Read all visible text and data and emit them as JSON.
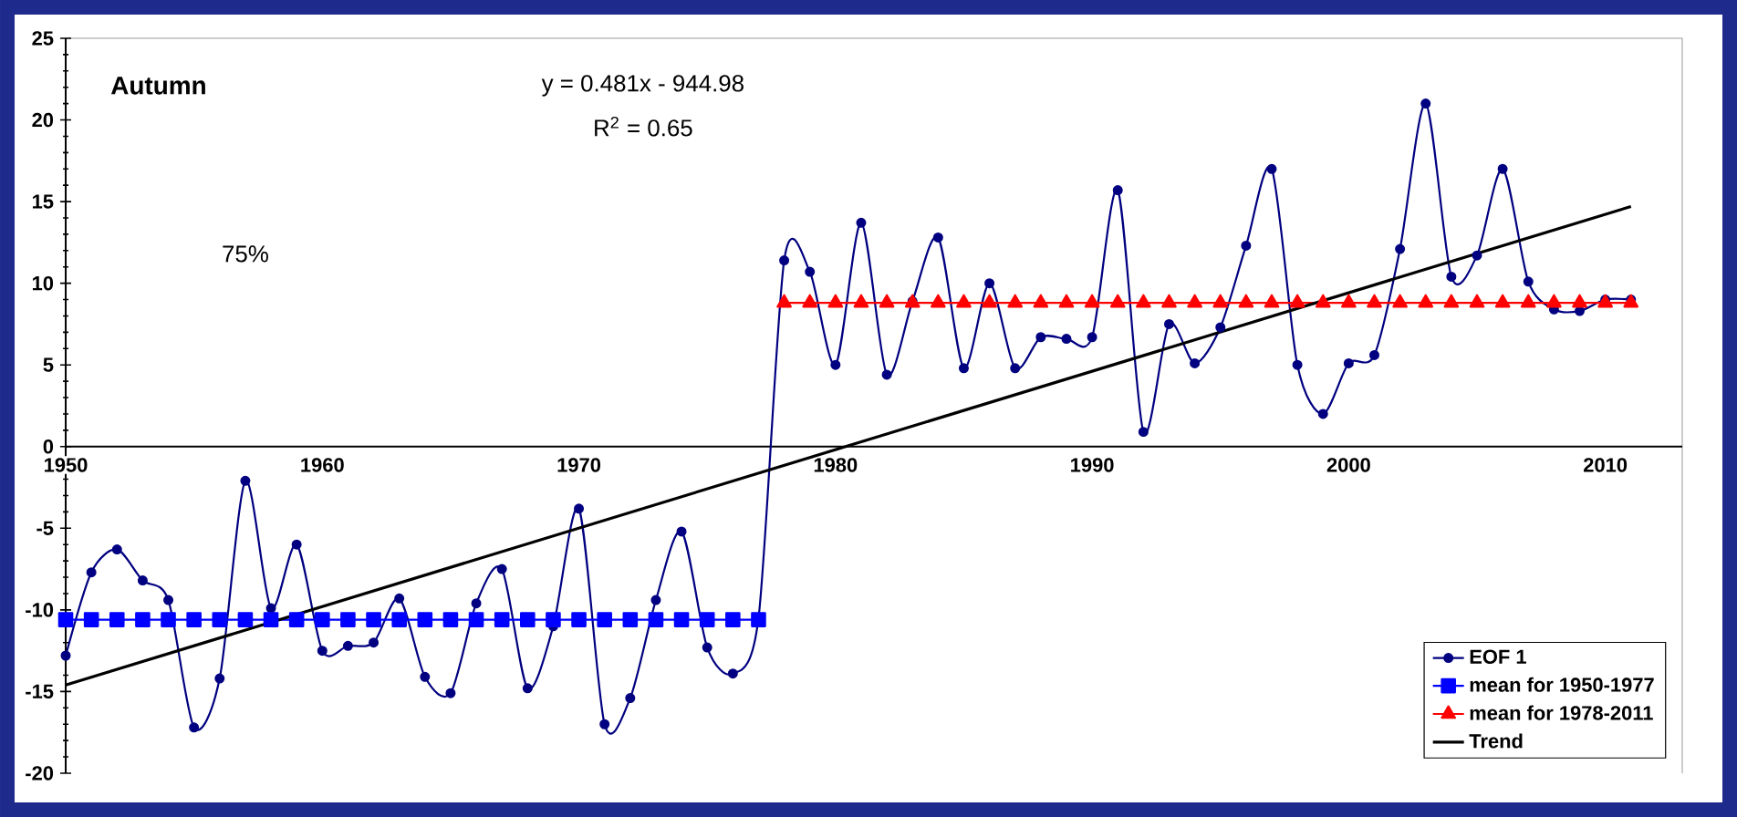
{
  "chart_data": {
    "type": "line",
    "title": "Autumn",
    "annotations": [
      "y = 0.481x - 944.98",
      "R$^{2}$ = 0.65",
      "75%"
    ],
    "xlim": [
      1950,
      2013
    ],
    "xticks": [
      1950,
      1960,
      1970,
      1980,
      1990,
      2000,
      2010
    ],
    "ylim": [
      -20,
      25
    ],
    "yticks": [
      -20,
      -15,
      -10,
      -5,
      0,
      5,
      10,
      15,
      20,
      25
    ],
    "grid": false,
    "legend": "bottom right",
    "series": [
      {
        "name": "EOF 1",
        "color": "#000080",
        "marker": "circle",
        "x": [
          1950,
          1951,
          1952,
          1953,
          1954,
          1955,
          1956,
          1957,
          1958,
          1959,
          1960,
          1961,
          1962,
          1963,
          1964,
          1965,
          1966,
          1967,
          1968,
          1969,
          1970,
          1971,
          1972,
          1973,
          1974,
          1975,
          1976,
          1977,
          1978,
          1979,
          1980,
          1981,
          1982,
          1983,
          1984,
          1985,
          1986,
          1987,
          1988,
          1989,
          1990,
          1991,
          1992,
          1993,
          1994,
          1995,
          1996,
          1997,
          1998,
          1999,
          2000,
          2001,
          2002,
          2003,
          2004,
          2005,
          2006,
          2007,
          2008,
          2009,
          2010,
          2011
        ],
        "values": [
          -12.8,
          -7.7,
          -6.3,
          -8.2,
          -9.4,
          -17.2,
          -14.2,
          -2.1,
          -9.9,
          -6.0,
          -12.5,
          -12.2,
          -12.0,
          -9.3,
          -14.1,
          -15.1,
          -9.6,
          -7.5,
          -14.8,
          -11.0,
          -3.8,
          -17.0,
          -15.4,
          -9.4,
          -5.2,
          -12.3,
          -13.9,
          -10.5,
          11.4,
          10.7,
          5.0,
          13.7,
          4.4,
          8.9,
          12.8,
          4.8,
          10.0,
          4.8,
          6.7,
          6.6,
          6.7,
          15.7,
          0.9,
          7.5,
          5.1,
          7.3,
          12.3,
          17.0,
          5.0,
          2.0,
          5.1,
          5.6,
          12.1,
          21.0,
          10.4,
          11.7,
          17.0,
          10.1,
          8.4,
          8.3,
          9.0,
          9.0
        ]
      },
      {
        "name": "mean for 1950-1977",
        "color": "#0000ff",
        "marker": "square",
        "x": [
          1950,
          1951,
          1952,
          1953,
          1954,
          1955,
          1956,
          1957,
          1958,
          1959,
          1960,
          1961,
          1962,
          1963,
          1964,
          1965,
          1966,
          1967,
          1968,
          1969,
          1970,
          1971,
          1972,
          1973,
          1974,
          1975,
          1976,
          1977
        ],
        "values": [
          -10.6,
          -10.6,
          -10.6,
          -10.6,
          -10.6,
          -10.6,
          -10.6,
          -10.6,
          -10.6,
          -10.6,
          -10.6,
          -10.6,
          -10.6,
          -10.6,
          -10.6,
          -10.6,
          -10.6,
          -10.6,
          -10.6,
          -10.6,
          -10.6,
          -10.6,
          -10.6,
          -10.6,
          -10.6,
          -10.6,
          -10.6,
          -10.6
        ]
      },
      {
        "name": "mean for 1978-2011",
        "color": "#ff0000",
        "marker": "triangle",
        "x": [
          1978,
          1979,
          1980,
          1981,
          1982,
          1983,
          1984,
          1985,
          1986,
          1987,
          1988,
          1989,
          1990,
          1991,
          1992,
          1993,
          1994,
          1995,
          1996,
          1997,
          1998,
          1999,
          2000,
          2001,
          2002,
          2003,
          2004,
          2005,
          2006,
          2007,
          2008,
          2009,
          2010,
          2011
        ],
        "values": [
          8.8,
          8.8,
          8.8,
          8.8,
          8.8,
          8.8,
          8.8,
          8.8,
          8.8,
          8.8,
          8.8,
          8.8,
          8.8,
          8.8,
          8.8,
          8.8,
          8.8,
          8.8,
          8.8,
          8.8,
          8.8,
          8.8,
          8.8,
          8.8,
          8.8,
          8.8,
          8.8,
          8.8,
          8.8,
          8.8,
          8.8,
          8.8,
          8.8,
          8.8
        ]
      },
      {
        "name": "Trend",
        "color": "#000000",
        "marker": "none",
        "x": [
          1950,
          2011
        ],
        "values": [
          -14.6,
          14.7
        ]
      }
    ]
  }
}
